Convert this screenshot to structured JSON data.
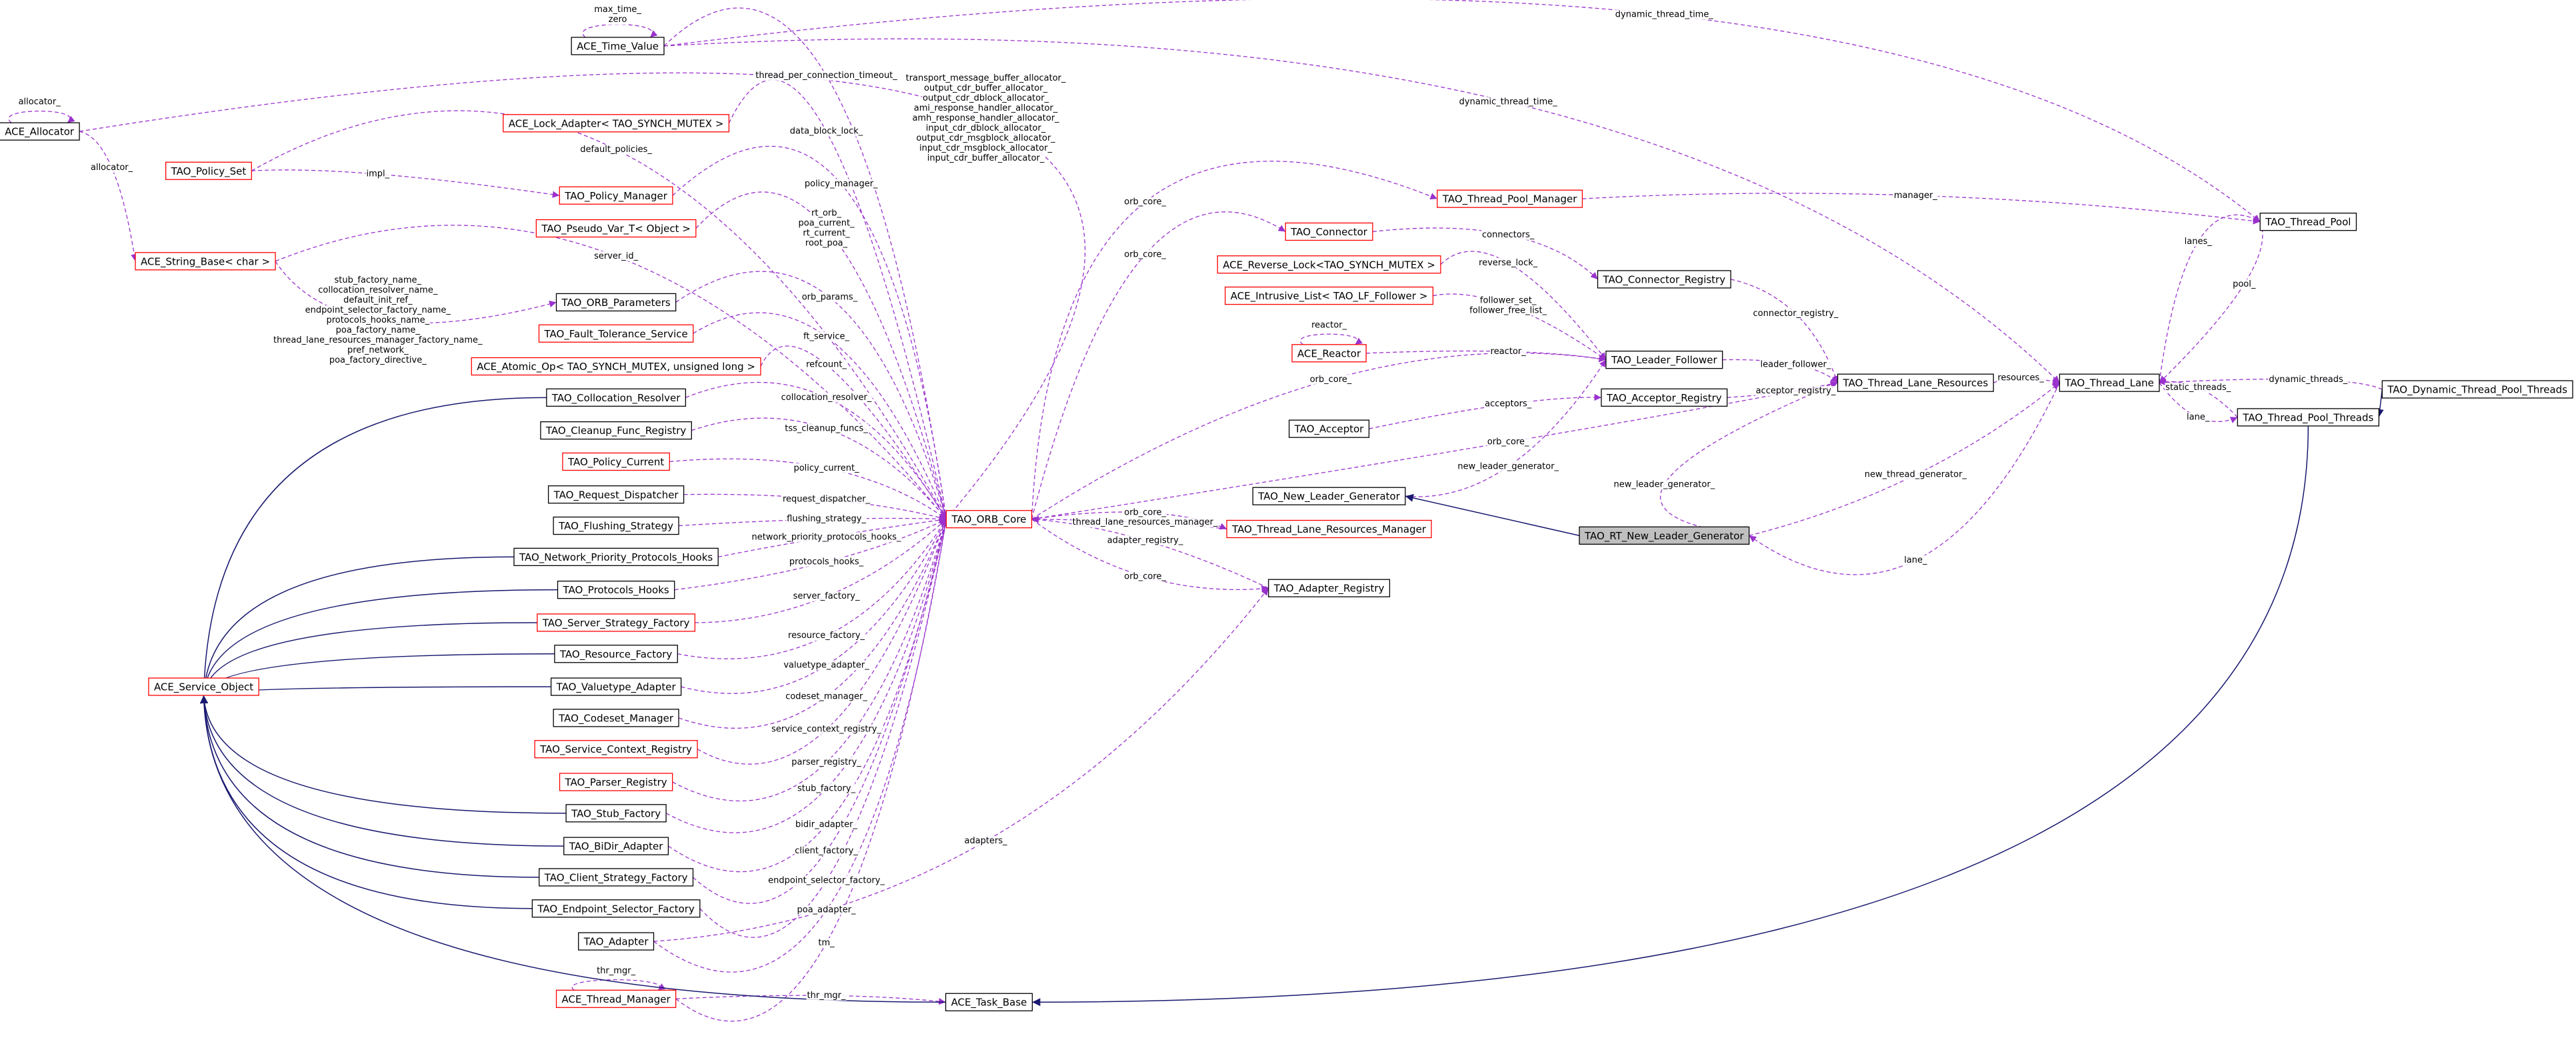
{
  "nodes": [
    {
      "label": "ACE_Time_Value"
    },
    {
      "label": "ACE_Allocator"
    },
    {
      "label": "ACE_Lock_Adapter< TAO_SYNCH_MUTEX >"
    },
    {
      "label": "TAO_Policy_Set"
    },
    {
      "label": "TAO_Policy_Manager"
    },
    {
      "label": "TAO_Pseudo_Var_T< Object >"
    },
    {
      "label": "ACE_String_Base< char >"
    },
    {
      "label": "TAO_ORB_Parameters"
    },
    {
      "label": "TAO_Fault_Tolerance_Service"
    },
    {
      "label": "ACE_Atomic_Op< TAO_SYNCH_MUTEX, unsigned long >"
    },
    {
      "label": "TAO_Collocation_Resolver"
    },
    {
      "label": "TAO_Cleanup_Func_Registry"
    },
    {
      "label": "TAO_Policy_Current"
    },
    {
      "label": "TAO_Request_Dispatcher"
    },
    {
      "label": "TAO_Flushing_Strategy"
    },
    {
      "label": "TAO_Network_Priority_Protocols_Hooks"
    },
    {
      "label": "TAO_Protocols_Hooks"
    },
    {
      "label": "TAO_Server_Strategy_Factory"
    },
    {
      "label": "TAO_Resource_Factory"
    },
    {
      "label": "TAO_Valuetype_Adapter"
    },
    {
      "label": "TAO_Codeset_Manager"
    },
    {
      "label": "TAO_Service_Context_Registry"
    },
    {
      "label": "TAO_Parser_Registry"
    },
    {
      "label": "TAO_Stub_Factory"
    },
    {
      "label": "TAO_BiDir_Adapter"
    },
    {
      "label": "TAO_Client_Strategy_Factory"
    },
    {
      "label": "TAO_Endpoint_Selector_Factory"
    },
    {
      "label": "TAO_Adapter"
    },
    {
      "label": "ACE_Thread_Manager"
    },
    {
      "label": "ACE_Service_Object"
    },
    {
      "label": "ACE_Task_Base"
    },
    {
      "label": "TAO_ORB_Core"
    },
    {
      "label": "TAO_Thread_Pool_Manager"
    },
    {
      "label": "TAO_Connector"
    },
    {
      "label": "ACE_Reverse_Lock<TAO_SYNCH_MUTEX >"
    },
    {
      "label": "ACE_Intrusive_List< TAO_LF_Follower >"
    },
    {
      "label": "ACE_Reactor"
    },
    {
      "label": "TAO_Acceptor"
    },
    {
      "label": "TAO_Connector_Registry"
    },
    {
      "label": "TAO_Leader_Follower"
    },
    {
      "label": "TAO_Acceptor_Registry"
    },
    {
      "label": "TAO_New_Leader_Generator"
    },
    {
      "label": "TAO_Thread_Lane_Resources_Manager"
    },
    {
      "label": "TAO_RT_New_Leader_Generator"
    },
    {
      "label": "TAO_Adapter_Registry"
    },
    {
      "label": "TAO_Thread_Lane_Resources"
    },
    {
      "label": "TAO_Thread_Lane"
    },
    {
      "label": "TAO_Thread_Pool"
    },
    {
      "label": "TAO_Dynamic_Thread_Pool_Threads"
    },
    {
      "label": "TAO_Thread_Pool_Threads"
    }
  ],
  "edges": [
    {
      "label": [
        "max_time_",
        "zero"
      ]
    },
    {
      "label": [
        "allocator_"
      ]
    },
    {
      "label": [
        "thread_per_connection_timeout_"
      ]
    },
    {
      "label": [
        "transport_message_buffer_allocator_",
        "output_cdr_buffer_allocator_",
        "output_cdr_dblock_allocator_",
        "ami_response_handler_allocator_",
        "amh_response_handler_allocator_",
        "input_cdr_dblock_allocator_",
        "output_cdr_msgblock_allocator_",
        "input_cdr_msgblock_allocator_",
        "input_cdr_buffer_allocator_"
      ]
    },
    {
      "label": [
        "dynamic_thread_time_"
      ]
    },
    {
      "label": [
        "dynamic_thread_time_"
      ]
    },
    {
      "label": [
        "data_block_lock_"
      ]
    },
    {
      "label": [
        "default_policies_"
      ]
    },
    {
      "label": [
        "impl_"
      ]
    },
    {
      "label": [
        "allocator_"
      ]
    },
    {
      "label": [
        "policy_manager_"
      ]
    },
    {
      "label": [
        "rt_orb_",
        "poa_current_",
        "rt_current_",
        "root_poa_"
      ]
    },
    {
      "label": [
        "server_id_"
      ]
    },
    {
      "label": [
        "stub_factory_name_",
        "collocation_resolver_name_",
        "default_init_ref_",
        "endpoint_selector_factory_name_",
        "protocols_hooks_name_",
        "poa_factory_name_",
        "thread_lane_resources_manager_factory_name_",
        "pref_network_",
        "poa_factory_directive_"
      ]
    },
    {
      "label": [
        "orb_params_"
      ]
    },
    {
      "label": [
        "ft_service_"
      ]
    },
    {
      "label": [
        "refcount_"
      ]
    },
    {
      "label": [
        "collocation_resolver_"
      ]
    },
    {
      "label": [
        "tss_cleanup_funcs_"
      ]
    },
    {
      "label": [
        "policy_current_"
      ]
    },
    {
      "label": [
        "request_dispatcher_"
      ]
    },
    {
      "label": [
        "flushing_strategy_"
      ]
    },
    {
      "label": [
        "network_priority_protocols_hooks_"
      ]
    },
    {
      "label": [
        "protocols_hooks_"
      ]
    },
    {
      "label": [
        "server_factory_"
      ]
    },
    {
      "label": [
        "resource_factory_"
      ]
    },
    {
      "label": [
        "valuetype_adapter_"
      ]
    },
    {
      "label": [
        "codeset_manager_"
      ]
    },
    {
      "label": [
        "service_context_registry_"
      ]
    },
    {
      "label": [
        "parser_registry_"
      ]
    },
    {
      "label": [
        "stub_factory_"
      ]
    },
    {
      "label": [
        "bidir_adapter_"
      ]
    },
    {
      "label": [
        "client_factory_"
      ]
    },
    {
      "label": [
        "endpoint_selector_factory_"
      ]
    },
    {
      "label": [
        "poa_adapter_"
      ]
    },
    {
      "label": [
        "tm_"
      ]
    },
    {
      "label": [
        "thr_mgr_"
      ]
    },
    {
      "label": [
        "thr_mgr_"
      ]
    },
    {
      "label": [
        "adapters_"
      ]
    },
    {
      "label": [
        "orb_core_"
      ]
    },
    {
      "label": [
        "orb_core_"
      ]
    },
    {
      "label": [
        "orb_core_"
      ]
    },
    {
      "label": [
        "orb_core_"
      ]
    },
    {
      "label": [
        "orb_core_"
      ]
    },
    {
      "label": [
        "thread_lane_resources_manager_"
      ]
    },
    {
      "label": [
        "adapter_registry_"
      ]
    },
    {
      "label": [
        "orb_core_"
      ]
    },
    {
      "label": [
        "new_leader_generator_"
      ]
    },
    {
      "label": [
        "new_leader_generator_"
      ]
    },
    {
      "label": [
        "new_thread_generator_"
      ]
    },
    {
      "label": [
        "lane_"
      ]
    },
    {
      "label": [
        "manager_"
      ]
    },
    {
      "label": [
        "connectors_"
      ]
    },
    {
      "label": [
        "reverse_lock_"
      ]
    },
    {
      "label": [
        "follower_set_",
        "follower_free_list_"
      ]
    },
    {
      "label": [
        "reactor_"
      ]
    },
    {
      "label": [
        "reactor_"
      ]
    },
    {
      "label": [
        "acceptors_"
      ]
    },
    {
      "label": [
        "connector_registry_"
      ]
    },
    {
      "label": [
        "leader_follower_"
      ]
    },
    {
      "label": [
        "acceptor_registry_"
      ]
    },
    {
      "label": [
        "resources_"
      ]
    },
    {
      "label": [
        "lanes_"
      ]
    },
    {
      "label": [
        "pool_"
      ]
    },
    {
      "label": [
        "dynamic_threads_"
      ]
    },
    {
      "label": [
        "static_threads_"
      ]
    },
    {
      "label": [
        "lane_"
      ]
    }
  ]
}
